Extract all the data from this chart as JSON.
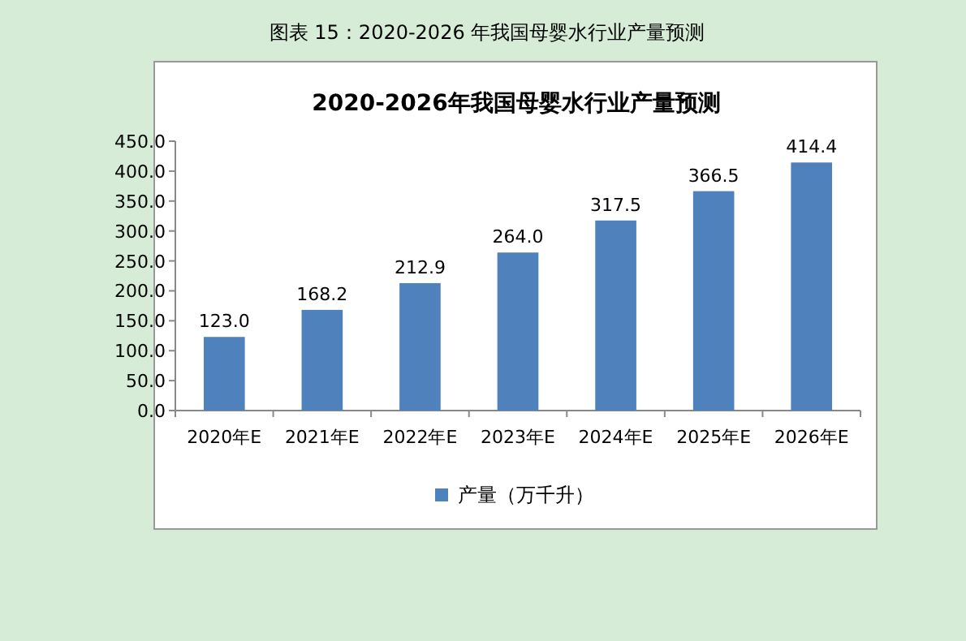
{
  "chart_data": {
    "type": "bar",
    "title": "2020-2026年我国母婴水行业产量预测",
    "annotations": [
      "图表 15：2020-2026 年我国母婴水行业产量预测"
    ],
    "categories": [
      "2020年E",
      "2021年E",
      "2022年E",
      "2023年E",
      "2024年E",
      "2025年E",
      "2026年E"
    ],
    "series": [
      {
        "name": "产量（万千升）",
        "color": "#4f81bd",
        "values": [
          123.0,
          168.2,
          212.9,
          264.0,
          317.5,
          366.5,
          414.4
        ]
      }
    ],
    "value_labels": [
      "123.0",
      "168.2",
      "212.9",
      "264.0",
      "317.5",
      "366.5",
      "414.4"
    ],
    "ylim": [
      0,
      450
    ],
    "yticks": [
      {
        "value": 0,
        "label": "0.0"
      },
      {
        "value": 50,
        "label": "50.0"
      },
      {
        "value": 100,
        "label": "100.0"
      },
      {
        "value": 150,
        "label": "150.0"
      },
      {
        "value": 200,
        "label": "200.0"
      },
      {
        "value": 250,
        "label": "250.0"
      },
      {
        "value": 300,
        "label": "300.0"
      },
      {
        "value": 350,
        "label": "350.0"
      },
      {
        "value": 400,
        "label": "400.0"
      },
      {
        "value": 450,
        "label": "450.0"
      }
    ],
    "grid": false,
    "legend": "bottom"
  }
}
